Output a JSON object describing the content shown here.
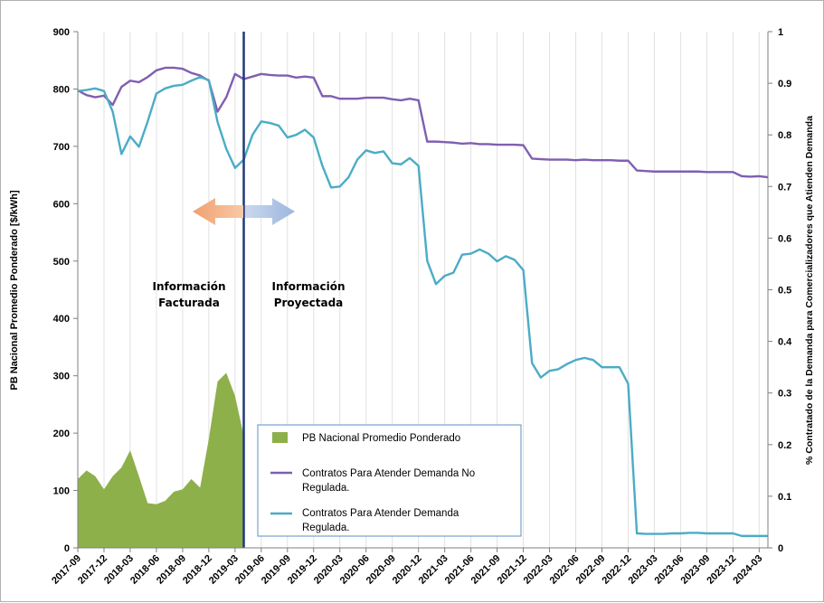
{
  "chart_data": {
    "type": "line",
    "left_axis": {
      "label": "PB Nacional Promedio Ponderado  [$/kWh]",
      "ylim": [
        0,
        900
      ],
      "ticks": [
        "0",
        "100",
        "200",
        "300",
        "400",
        "500",
        "600",
        "700",
        "800",
        "900"
      ]
    },
    "right_axis": {
      "label": "% Contratado de la Demanda para Comercializadores que Atienden Demanda",
      "ylim": [
        0,
        1
      ],
      "ticks": [
        "0",
        "0.1",
        "0.2",
        "0.3",
        "0.4",
        "0.5",
        "0.6",
        "0.7",
        "0.8",
        "0.9",
        "1"
      ]
    },
    "x_tick_labels": [
      "2017-09",
      "2017-12",
      "2018-03",
      "2018-06",
      "2018-09",
      "2018-12",
      "2019-03",
      "2019-06",
      "2019-09",
      "2019-12",
      "2020-03",
      "2020-06",
      "2020-09",
      "2020-12",
      "2021-03",
      "2021-06",
      "2021-09",
      "2021-12",
      "2022-03",
      "2022-06",
      "2022-09",
      "2022-12",
      "2023-03",
      "2023-06",
      "2023-09",
      "2023-12",
      "2024-03"
    ],
    "annotations": {
      "facturada": [
        "Información",
        "Facturada"
      ],
      "proyectada": [
        "Información",
        "Proyectada"
      ]
    },
    "series": [
      {
        "name": "PB Nacional Promedio Ponderado",
        "axis": "left",
        "kind": "area",
        "color": "#8db04b",
        "x": [
          "2017-09",
          "2017-10",
          "2017-11",
          "2017-12",
          "2018-01",
          "2018-02",
          "2018-03",
          "2018-04",
          "2018-05",
          "2018-06",
          "2018-07",
          "2018-08",
          "2018-09",
          "2018-10",
          "2018-11",
          "2018-12",
          "2019-01",
          "2019-02",
          "2019-03",
          "2019-04"
        ],
        "values": [
          120,
          135,
          125,
          102,
          125,
          140,
          170,
          125,
          78,
          76,
          82,
          98,
          102,
          120,
          105,
          190,
          290,
          305,
          265,
          195
        ]
      },
      {
        "name": "Contratos Para Atender Demanda  No Regulada.",
        "axis": "right",
        "kind": "line",
        "color": "#7f5fb0",
        "x": [
          "2017-09",
          "2017-10",
          "2017-11",
          "2017-12",
          "2018-01",
          "2018-02",
          "2018-03",
          "2018-04",
          "2018-05",
          "2018-06",
          "2018-07",
          "2018-08",
          "2018-09",
          "2018-10",
          "2018-11",
          "2018-12",
          "2019-01",
          "2019-02",
          "2019-03",
          "2019-04",
          "2019-05",
          "2019-06",
          "2019-07",
          "2019-08",
          "2019-09",
          "2019-10",
          "2019-11",
          "2019-12",
          "2020-01",
          "2020-02",
          "2020-03",
          "2020-04",
          "2020-05",
          "2020-06",
          "2020-07",
          "2020-08",
          "2020-09",
          "2020-10",
          "2020-11",
          "2020-12",
          "2021-01",
          "2021-02",
          "2021-03",
          "2021-04",
          "2021-05",
          "2021-06",
          "2021-07",
          "2021-08",
          "2021-09",
          "2021-10",
          "2021-11",
          "2021-12",
          "2022-01",
          "2022-02",
          "2022-03",
          "2022-04",
          "2022-05",
          "2022-06",
          "2022-07",
          "2022-08",
          "2022-09",
          "2022-10",
          "2022-11",
          "2022-12",
          "2023-01",
          "2023-02",
          "2023-03",
          "2023-04",
          "2023-05",
          "2023-06",
          "2023-07",
          "2023-08",
          "2023-09",
          "2023-10",
          "2023-11",
          "2023-12",
          "2024-01",
          "2024-02",
          "2024-03",
          "2024-04"
        ],
        "values": [
          0.886,
          0.877,
          0.873,
          0.876,
          0.858,
          0.893,
          0.905,
          0.902,
          0.912,
          0.925,
          0.93,
          0.93,
          0.928,
          0.92,
          0.915,
          0.905,
          0.845,
          0.873,
          0.918,
          0.908,
          0.913,
          0.918,
          0.916,
          0.915,
          0.915,
          0.911,
          0.913,
          0.911,
          0.875,
          0.875,
          0.87,
          0.87,
          0.87,
          0.872,
          0.872,
          0.872,
          0.869,
          0.867,
          0.87,
          0.867,
          0.787,
          0.787,
          0.786,
          0.785,
          0.783,
          0.784,
          0.782,
          0.782,
          0.781,
          0.781,
          0.781,
          0.78,
          0.754,
          0.753,
          0.752,
          0.752,
          0.752,
          0.751,
          0.752,
          0.751,
          0.751,
          0.751,
          0.75,
          0.75,
          0.731,
          0.73,
          0.729,
          0.729,
          0.729,
          0.729,
          0.729,
          0.729,
          0.728,
          0.728,
          0.728,
          0.728,
          0.72,
          0.719,
          0.72,
          0.718
        ]
      },
      {
        "name": "Contratos Para Atender Demanda Regulada.",
        "axis": "right",
        "kind": "line",
        "color": "#4bacc6",
        "x": [
          "2017-09",
          "2017-10",
          "2017-11",
          "2017-12",
          "2018-01",
          "2018-02",
          "2018-03",
          "2018-04",
          "2018-05",
          "2018-06",
          "2018-07",
          "2018-08",
          "2018-09",
          "2018-10",
          "2018-11",
          "2018-12",
          "2019-01",
          "2019-02",
          "2019-03",
          "2019-04",
          "2019-05",
          "2019-06",
          "2019-07",
          "2019-08",
          "2019-09",
          "2019-10",
          "2019-11",
          "2019-12",
          "2020-01",
          "2020-02",
          "2020-03",
          "2020-04",
          "2020-05",
          "2020-06",
          "2020-07",
          "2020-08",
          "2020-09",
          "2020-10",
          "2020-11",
          "2020-12",
          "2021-01",
          "2021-02",
          "2021-03",
          "2021-04",
          "2021-05",
          "2021-06",
          "2021-07",
          "2021-08",
          "2021-09",
          "2021-10",
          "2021-11",
          "2021-12",
          "2022-01",
          "2022-02",
          "2022-03",
          "2022-04",
          "2022-05",
          "2022-06",
          "2022-07",
          "2022-08",
          "2022-09",
          "2022-10",
          "2022-11",
          "2022-12",
          "2023-01",
          "2023-02",
          "2023-03",
          "2023-04",
          "2023-05",
          "2023-06",
          "2023-07",
          "2023-08",
          "2023-09",
          "2023-10",
          "2023-11",
          "2023-12",
          "2024-01",
          "2024-02",
          "2024-03",
          "2024-04"
        ],
        "values": [
          0.885,
          0.887,
          0.89,
          0.885,
          0.845,
          0.763,
          0.797,
          0.777,
          0.826,
          0.88,
          0.89,
          0.895,
          0.897,
          0.905,
          0.912,
          0.906,
          0.825,
          0.773,
          0.736,
          0.752,
          0.8,
          0.826,
          0.823,
          0.818,
          0.795,
          0.8,
          0.81,
          0.795,
          0.74,
          0.698,
          0.7,
          0.718,
          0.752,
          0.77,
          0.765,
          0.768,
          0.745,
          0.743,
          0.755,
          0.74,
          0.556,
          0.511,
          0.527,
          0.533,
          0.568,
          0.57,
          0.578,
          0.57,
          0.555,
          0.565,
          0.558,
          0.538,
          0.358,
          0.33,
          0.343,
          0.346,
          0.356,
          0.364,
          0.368,
          0.364,
          0.35,
          0.35,
          0.35,
          0.318,
          0.028,
          0.027,
          0.027,
          0.027,
          0.028,
          0.028,
          0.029,
          0.029,
          0.028,
          0.028,
          0.028,
          0.028,
          0.023,
          0.023,
          0.023,
          0.023
        ]
      }
    ],
    "divider_at": "2019-04",
    "legend_position": "center-bottom",
    "grid": "vertical"
  }
}
